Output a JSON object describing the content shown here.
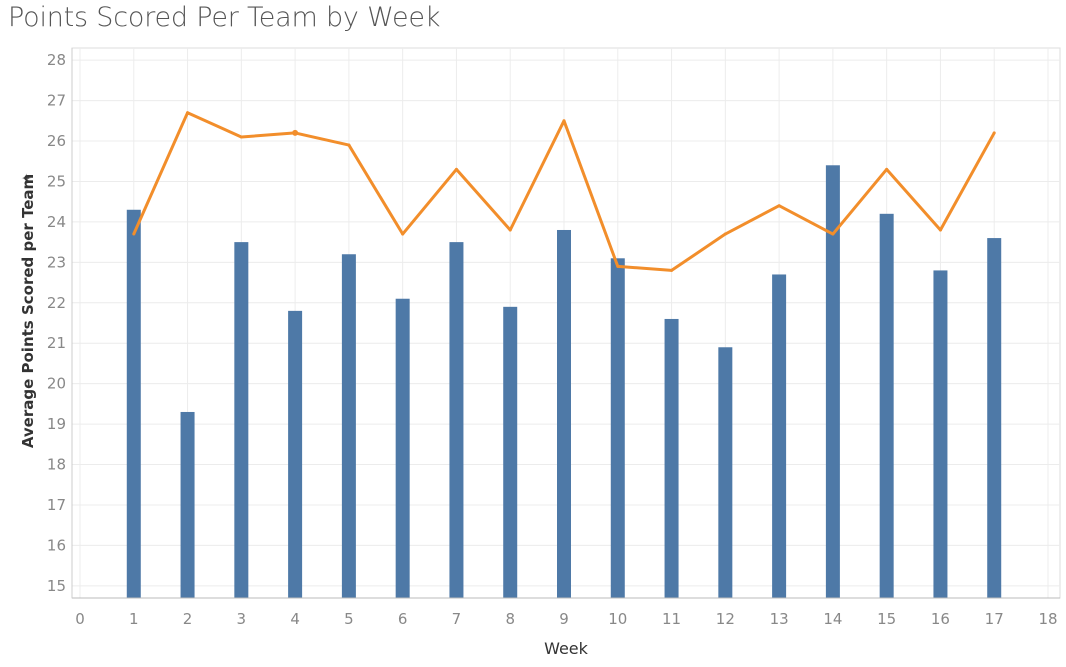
{
  "chart_data": {
    "type": "bar",
    "title": "Points Scored Per Team by Week",
    "xlabel": "Week",
    "ylabel": "Average Points Scored per Team",
    "ylim": [
      15,
      28
    ],
    "xlim": [
      0,
      18
    ],
    "grid": true,
    "categories": [
      1,
      2,
      3,
      4,
      5,
      6,
      7,
      8,
      9,
      10,
      11,
      12,
      13,
      14,
      15,
      16,
      17
    ],
    "series": [
      {
        "type": "bar",
        "color": "#4e79a7",
        "values": [
          24.3,
          19.3,
          23.5,
          21.8,
          23.2,
          22.1,
          23.5,
          21.9,
          23.8,
          23.1,
          21.6,
          20.9,
          22.7,
          25.4,
          24.2,
          22.8,
          23.6
        ]
      },
      {
        "type": "line",
        "color": "#f28e2b",
        "values": [
          23.7,
          26.7,
          26.1,
          26.2,
          25.9,
          23.7,
          25.3,
          23.8,
          26.5,
          22.9,
          22.8,
          23.7,
          24.4,
          23.7,
          25.3,
          23.8,
          26.2
        ]
      }
    ],
    "y_ticks": [
      15,
      16,
      17,
      18,
      19,
      20,
      21,
      22,
      23,
      24,
      25,
      26,
      27,
      28
    ],
    "x_ticks": [
      0,
      1,
      2,
      3,
      4,
      5,
      6,
      7,
      8,
      9,
      10,
      11,
      12,
      13,
      14,
      15,
      16,
      17,
      18
    ]
  },
  "icons": {
    "axis_pin": "pin-icon"
  },
  "pin_glyph": "✦"
}
